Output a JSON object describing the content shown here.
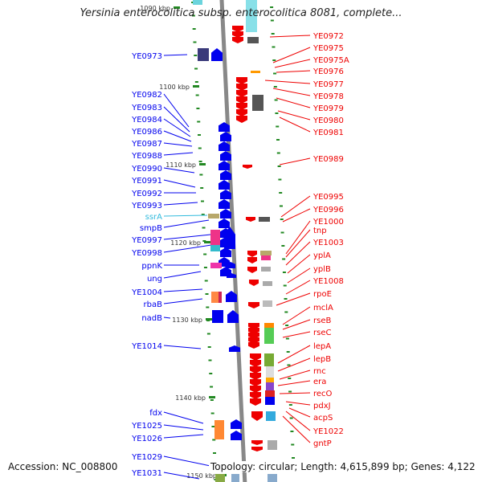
{
  "title": "Yersinia enterocolitica subsp. enterocolitica 8081, complete...",
  "footer": {
    "accession": "Accession: NC_008800",
    "topology": "Topology: circular; Length: 4,615,899 bp; Genes: 4,122"
  },
  "colors": {
    "forward": "#0000ee",
    "reverse": "#ee0000",
    "rna": "#33bbdd",
    "backbone": "#888888",
    "tick": "#228822"
  },
  "scale_labels": [
    "1090 kbp",
    "1100 kbp",
    "1110 kbp",
    "1120 kbp",
    "1130 kbp",
    "1140 kbp",
    "1150 kbp"
  ],
  "left_genes": [
    "YE0973",
    "YE0982",
    "YE0983",
    "YE0984",
    "YE0986",
    "YE0987",
    "YE0988",
    "YE0990",
    "YE0991",
    "YE0992",
    "YE0993",
    "ssrA",
    "smpB",
    "YE0997",
    "YE0998",
    "ppnK",
    "ung",
    "YE1004",
    "rbaB",
    "nadB",
    "YE1014",
    "fdx",
    "YE1025",
    "YE1026",
    "YE1029",
    "YE1031"
  ],
  "right_genes": [
    "YE0972",
    "YE0975",
    "YE0975A",
    "YE0976",
    "YE0977",
    "YE0978",
    "YE0979",
    "YE0980",
    "YE0981",
    "YE0989",
    "YE0995",
    "YE0996",
    "YE1000",
    "tnp",
    "YE1003",
    "yplA",
    "yplB",
    "YE1008",
    "rpoE",
    "mclA",
    "rseB",
    "rseC",
    "lepA",
    "lepB",
    "rnc",
    "era",
    "recO",
    "pdxJ",
    "acpS",
    "YE1022",
    "gntP"
  ]
}
